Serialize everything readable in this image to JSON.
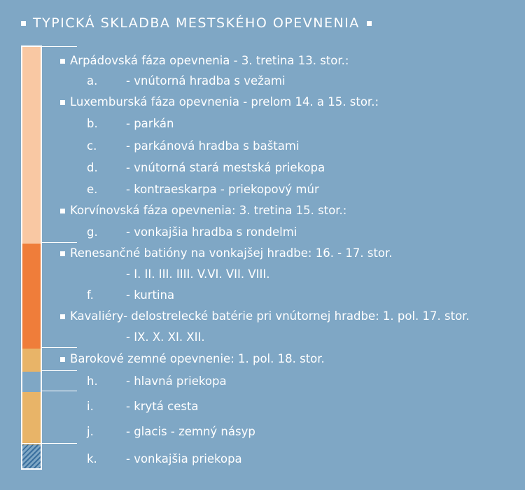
{
  "title": "TYPICKÁ SKLADBA MESTSKÉHO OPEVNENIA",
  "colors": {
    "background": "#7fa7c5",
    "arpad_luxembourg_korvin": "#f9c8a3",
    "renaissance": "#ef7d3a",
    "baroque": "#e8b468",
    "moat_hatch": "#3a6f9e"
  },
  "entries": [
    {
      "kind": "head",
      "text": "Arpádovská fáza opevnenia - 3. tretina 13. stor.:"
    },
    {
      "kind": "item",
      "letter": "a.",
      "text": "- vnútorná hradba s vežami"
    },
    {
      "kind": "head",
      "text": "Luxemburská fáza opevnenia - prelom 14. a 15. stor.:"
    },
    {
      "kind": "item",
      "letter": "b.",
      "text": "- parkán"
    },
    {
      "kind": "item",
      "letter": "c.",
      "text": "- parkánová hradba s baštami"
    },
    {
      "kind": "item",
      "letter": "d.",
      "text": "- vnútorná stará mestská priekopa"
    },
    {
      "kind": "item",
      "letter": "e.",
      "text": "- kontraeskarpa - priekopový múr"
    },
    {
      "kind": "head",
      "text": "Korvínovská fáza opevnenia: 3. tretina 15. stor.:"
    },
    {
      "kind": "item",
      "letter": "g.",
      "text": "- vonkajšia hradba s rondelmi"
    },
    {
      "kind": "head",
      "text": "Renesančné batióny na vonkajšej hradbe: 16. - 17. stor."
    },
    {
      "kind": "item",
      "letter": "",
      "text": "- I. II. III. IIII. V.VI. VII. VIII."
    },
    {
      "kind": "item",
      "letter": "f.",
      "text": "- kurtina"
    },
    {
      "kind": "head",
      "text": "Kavaliéry- delostrelecké batérie pri vnútornej hradbe: 1. pol. 17. stor."
    },
    {
      "kind": "item",
      "letter": "",
      "text": "- IX. X. XI. XII."
    },
    {
      "kind": "head",
      "text": "Barokové zemné opevnenie: 1. pol. 18. stor."
    },
    {
      "kind": "item",
      "letter": "h.",
      "text": "- hlavná priekopa"
    },
    {
      "kind": "item",
      "letter": "i.",
      "text": "- krytá cesta"
    },
    {
      "kind": "item",
      "letter": "j.",
      "text": "- glacis - zemný násyp"
    },
    {
      "kind": "item",
      "letter": "k.",
      "text": "- vonkajšia priekopa"
    }
  ]
}
